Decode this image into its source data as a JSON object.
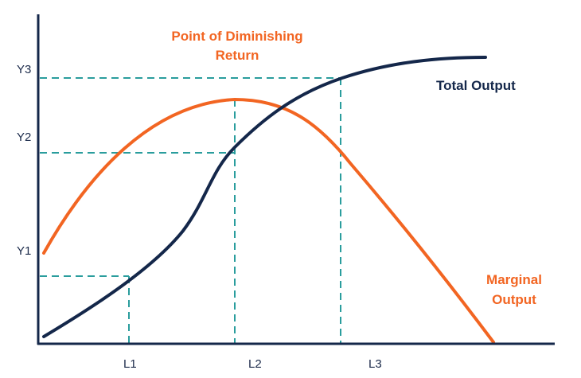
{
  "annotation": {
    "line1": "Point of Diminishing",
    "line2": "Return"
  },
  "total_output": {
    "label": "Total Output",
    "color": "#14274a"
  },
  "marginal_output": {
    "label_line1": "Marginal",
    "label_line2": "Output",
    "color": "#f26522"
  },
  "y_ticks": [
    "Y3",
    "Y2",
    "Y1"
  ],
  "x_ticks": [
    "L1",
    "L2",
    "L3"
  ],
  "guide_color": "#2a9d9d"
}
